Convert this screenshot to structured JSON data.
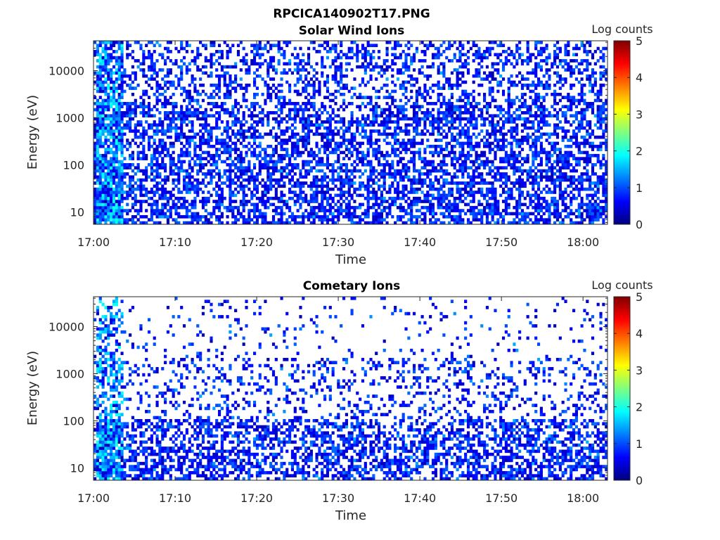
{
  "figure_title": "RPCICA140902T17.PNG",
  "colors": {
    "colormap": "jet",
    "colormap_stops": [
      "#00007f",
      "#0000ff",
      "#007fff",
      "#00ffff",
      "#7fff7f",
      "#ffff00",
      "#ff7f00",
      "#ff0000",
      "#7f0000"
    ],
    "axis": "#262626",
    "background": "#ffffff"
  },
  "chart_data": [
    {
      "type": "heatmap",
      "title": "Solar Wind Ions",
      "xlabel": "Time",
      "ylabel": "Energy (eV)",
      "x_range": [
        "17:00",
        "18:03"
      ],
      "x_ticks": [
        "17:00",
        "17:10",
        "17:20",
        "17:30",
        "17:40",
        "17:50",
        "18:00"
      ],
      "y_scale": "log",
      "y_range": [
        5.5,
        43000
      ],
      "y_ticks": [
        "10",
        "100",
        "1000",
        "10000"
      ],
      "colorbar": {
        "label": "Log counts",
        "range": [
          0,
          5
        ],
        "ticks": [
          "0",
          "1",
          "2",
          "3",
          "4",
          "5"
        ]
      },
      "description_of_values": "Sparse log-count bins across all energies; denser and higher counts (up to ~2 log counts) near 17:01–17:02; mostly 0–1 log counts elsewhere",
      "density": {
        "high_energy": 0.38,
        "mid_energy": 0.55,
        "low_energy": 0.6
      },
      "hot_time": "17:02"
    },
    {
      "type": "heatmap",
      "title": "Cometary Ions",
      "xlabel": "Time",
      "ylabel": "Energy (eV)",
      "x_range": [
        "17:00",
        "18:03"
      ],
      "x_ticks": [
        "17:00",
        "17:10",
        "17:20",
        "17:30",
        "17:40",
        "17:50",
        "18:00"
      ],
      "y_scale": "log",
      "y_range": [
        5.5,
        43000
      ],
      "y_ticks": [
        "10",
        "100",
        "1000",
        "10000"
      ],
      "colorbar": {
        "label": "Log counts",
        "range": [
          0,
          5
        ],
        "ticks": [
          "0",
          "1",
          "2",
          "3",
          "4",
          "5"
        ]
      },
      "description_of_values": "Very sparse counts at high energy, increasing density below ~300 eV; brighter bins near 17:01–17:02 at low energy",
      "density": {
        "high_energy": 0.07,
        "mid_energy": 0.2,
        "low_energy": 0.55
      },
      "hot_time": "17:02"
    }
  ]
}
